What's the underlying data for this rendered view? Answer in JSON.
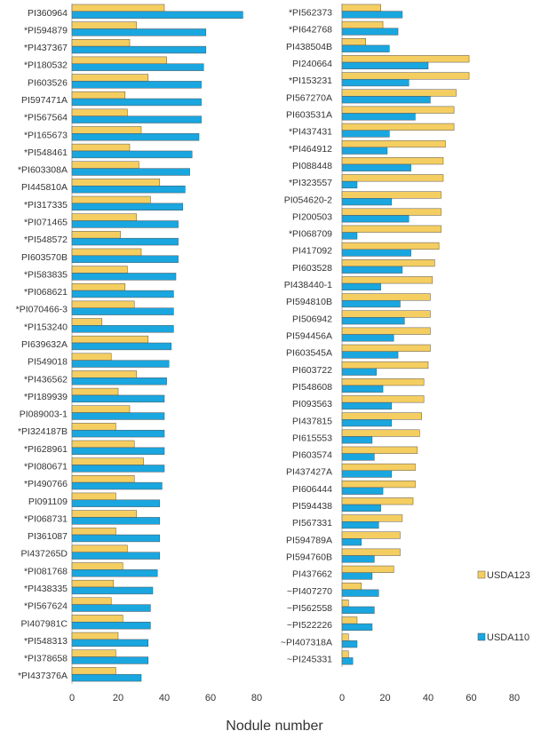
{
  "xlabel": "Nodule number",
  "colors": {
    "usda123": "#F5CE62",
    "usda110": "#1AA6DF",
    "stroke": "#555555",
    "axis": "#B5B5B5"
  },
  "legend": [
    {
      "key": "usda123",
      "label": "USDA123"
    },
    {
      "key": "usda110",
      "label": "USDA110"
    }
  ],
  "chart_data": [
    {
      "type": "bar",
      "orientation": "horizontal",
      "xlim": [
        0,
        80
      ],
      "xticks": [
        0,
        20,
        40,
        60,
        80
      ],
      "grid": false,
      "categories": [
        "PI360964",
        "*PI594879",
        "*PI437367",
        "*PI180532",
        "PI603526",
        "PI597471A",
        "*PI567564",
        "*PI165673",
        "*PI548461",
        "*PI603308A",
        "PI445810A",
        "*PI317335",
        "*PI071465",
        "*PI548572",
        "PI603570B",
        "*PI583835",
        "*PI068621",
        "*PI070466-3",
        "*PI153240",
        "PI639632A",
        "PI549018",
        "*PI436562",
        "*PI189939",
        "PI089003-1",
        "*PI324187B",
        "*PI628961",
        "*PI080671",
        "*PI490766",
        "PI091109",
        "*PI068731",
        "PI361087",
        "PI437265D",
        "*PI081768",
        "*PI438335",
        "*PI567624",
        "PI407981C",
        "*PI548313",
        "*PI378658",
        "*PI437376A"
      ],
      "series": [
        {
          "name": "USDA123",
          "values": [
            40,
            28,
            25,
            41,
            33,
            23,
            24,
            30,
            25,
            29,
            38,
            34,
            28,
            21,
            30,
            24,
            23,
            27,
            13,
            33,
            17,
            28,
            20,
            25,
            19,
            27,
            31,
            27,
            19,
            28,
            19,
            24,
            22,
            18,
            17,
            22,
            20,
            19,
            19
          ]
        },
        {
          "name": "USDA110",
          "values": [
            74,
            58,
            58,
            57,
            56,
            56,
            56,
            55,
            52,
            51,
            49,
            48,
            46,
            46,
            46,
            45,
            44,
            44,
            44,
            43,
            42,
            41,
            40,
            40,
            40,
            40,
            40,
            39,
            38,
            38,
            38,
            38,
            37,
            35,
            34,
            34,
            33,
            33,
            30
          ]
        }
      ]
    },
    {
      "type": "bar",
      "orientation": "horizontal",
      "xlim": [
        0,
        80
      ],
      "xticks": [
        0,
        20,
        40,
        60,
        80
      ],
      "grid": false,
      "legend_position": "right",
      "categories": [
        "*PI562373",
        "*PI642768",
        "PI438504B",
        "PI240664",
        "*PI153231",
        "PI567270A",
        "PI603531A",
        "*PI437431",
        "*PI464912",
        "PI088448",
        "*PI323557",
        "PI054620-2",
        "PI200503",
        "*PI068709",
        "PI417092",
        "PI603528",
        "PI438440-1",
        "PI594810B",
        "PI506942",
        "PI594456A",
        "PI603545A",
        "PI603722",
        "PI548608",
        "PI093563",
        "PI437815",
        "PI615553",
        "PI603574",
        "PI437427A",
        "PI606444",
        "PI594438",
        "PI567331",
        "PI594789A",
        "PI594760B",
        "PI437662",
        "~PI407270",
        "~PI562558",
        "~PI522226",
        "~PI407318A",
        "~PI245331"
      ],
      "series": [
        {
          "name": "USDA123",
          "values": [
            18,
            19,
            11,
            59,
            59,
            53,
            52,
            52,
            48,
            47,
            47,
            46,
            46,
            46,
            45,
            43,
            42,
            41,
            41,
            41,
            41,
            40,
            38,
            38,
            37,
            36,
            35,
            34,
            34,
            33,
            28,
            27,
            27,
            24,
            9,
            3,
            7,
            3,
            3
          ]
        },
        {
          "name": "USDA110",
          "values": [
            28,
            26,
            22,
            40,
            31,
            41,
            34,
            22,
            21,
            32,
            7,
            23,
            31,
            7,
            32,
            28,
            18,
            27,
            29,
            24,
            26,
            16,
            19,
            23,
            23,
            14,
            15,
            23,
            19,
            18,
            17,
            9,
            15,
            14,
            17,
            15,
            14,
            7,
            5
          ]
        }
      ]
    }
  ]
}
